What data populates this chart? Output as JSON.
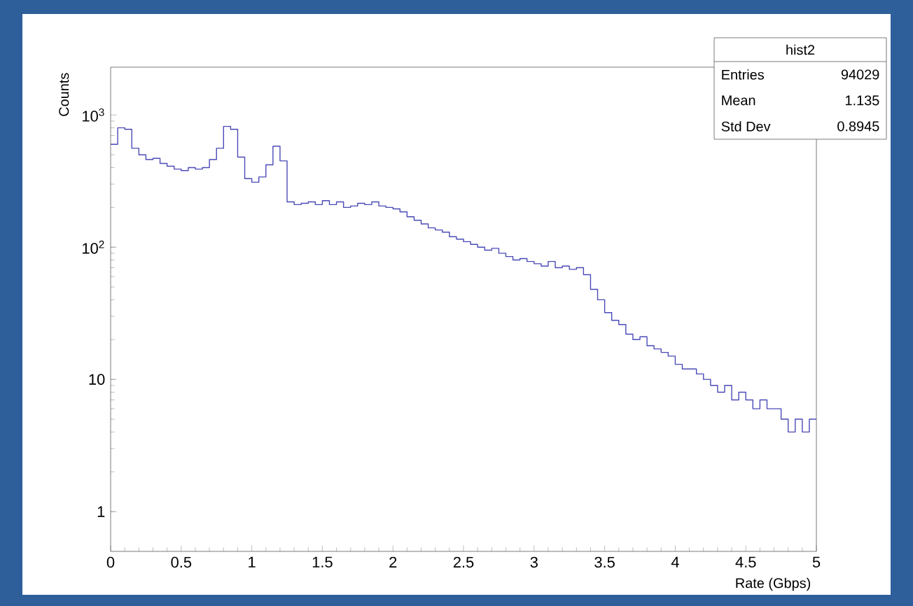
{
  "chart_data": {
    "type": "histogram",
    "xlabel": "Rate (Gbps)",
    "ylabel": "Counts",
    "log": "y",
    "grid": false,
    "color": "#4a4ab8",
    "bins": [
      0,
      0.05,
      0.1,
      0.15,
      0.2,
      0.25,
      0.3,
      0.35,
      0.4,
      0.45,
      0.5,
      0.55,
      0.6,
      0.65,
      0.7,
      0.75,
      0.8,
      0.85,
      0.9,
      0.95,
      1,
      1.05,
      1.1,
      1.15,
      1.2,
      1.25,
      1.3,
      1.35,
      1.4,
      1.45,
      1.5,
      1.55,
      1.6,
      1.65,
      1.7,
      1.75,
      1.8,
      1.85,
      1.9,
      1.95,
      2,
      2.05,
      2.1,
      2.15,
      2.2,
      2.25,
      2.3,
      2.35,
      2.4,
      2.45,
      2.5,
      2.55,
      2.6,
      2.65,
      2.7,
      2.75,
      2.8,
      2.85,
      2.9,
      2.95,
      3,
      3.05,
      3.1,
      3.15,
      3.2,
      3.25,
      3.3,
      3.35,
      3.4,
      3.45,
      3.5,
      3.55,
      3.6,
      3.65,
      3.7,
      3.75,
      3.8,
      3.85,
      3.9,
      3.95,
      4,
      4.05,
      4.1,
      4.15,
      4.2,
      4.25,
      4.3,
      4.35,
      4.4,
      4.45,
      4.5,
      4.55,
      4.6,
      4.65,
      4.7,
      4.75,
      4.8,
      4.85,
      4.9,
      4.95,
      5
    ],
    "values": [
      600,
      800,
      780,
      560,
      500,
      460,
      470,
      430,
      410,
      390,
      380,
      400,
      390,
      400,
      460,
      560,
      820,
      780,
      480,
      330,
      310,
      340,
      420,
      580,
      450,
      220,
      210,
      215,
      220,
      210,
      225,
      210,
      220,
      200,
      205,
      215,
      210,
      220,
      205,
      200,
      195,
      185,
      170,
      160,
      150,
      140,
      135,
      130,
      120,
      115,
      110,
      105,
      100,
      95,
      98,
      90,
      85,
      80,
      82,
      78,
      75,
      72,
      78,
      70,
      72,
      68,
      70,
      62,
      48,
      40,
      32,
      28,
      26,
      22,
      20,
      21,
      18,
      17,
      16,
      15,
      13,
      12,
      12,
      11,
      10,
      9,
      8,
      9,
      7,
      8,
      7,
      6,
      7,
      6,
      6,
      5,
      4,
      5,
      4,
      5
    ],
    "xlim": [
      0,
      5
    ],
    "ylim": [
      0.5,
      2300
    ],
    "xticks": [
      0,
      0.5,
      1,
      1.5,
      2,
      2.5,
      3,
      3.5,
      4,
      4.5,
      5
    ],
    "yticks": [
      1,
      10,
      {
        "value": 100,
        "label": "10$^{2}$"
      },
      {
        "value": 1000,
        "label": "10$^{3}$"
      }
    ],
    "annotations": [
      "hist2",
      "Entries",
      "94029",
      "Mean",
      "1.135",
      "Std Dev",
      "0.8945"
    ]
  }
}
